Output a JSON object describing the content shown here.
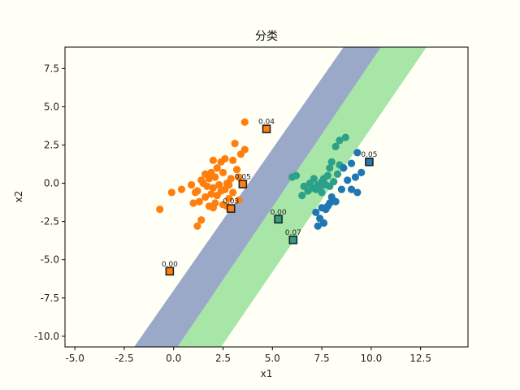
{
  "chart_data": {
    "type": "scatter",
    "title": "分类",
    "xlabel": "x1",
    "ylabel": "x2",
    "xlim": [
      -5.5,
      14.9
    ],
    "ylim": [
      -10.7,
      8.9
    ],
    "xticks": [
      "-5.0",
      "-2.5",
      "0.0",
      "2.5",
      "5.0",
      "7.5",
      "10.0",
      "12.5"
    ],
    "xtick_values": [
      -5,
      -2.5,
      0,
      2.5,
      5,
      7.5,
      10,
      12.5
    ],
    "yticks": [
      "7.5",
      "5.0",
      "2.5",
      "0.0",
      "-2.5",
      "-5.0",
      "-7.5",
      "-10.0"
    ],
    "ytick_values": [
      7.5,
      5,
      2.5,
      0,
      -2.5,
      -5,
      -7.5,
      -10
    ],
    "grid": false,
    "colors": {
      "orange": "#ff7f0e",
      "teal": "#2ca089",
      "blue": "#1f77b4",
      "band_left": "#9aa9c8",
      "band_right": "#a8e6a8",
      "background": "#fffff6"
    },
    "bands": [
      {
        "name": "",
        "color": "#9aa9c8",
        "polygon": [
          [
            -2.0,
            -10.7
          ],
          [
            0.2,
            -10.7
          ],
          [
            10.5,
            8.9
          ],
          [
            8.6,
            8.9
          ]
        ]
      },
      {
        "name": "",
        "color": "#a8e6a8",
        "polygon": [
          [
            0.2,
            -10.7
          ],
          [
            2.4,
            -10.7
          ],
          [
            12.8,
            8.9
          ],
          [
            10.5,
            8.9
          ]
        ]
      }
    ],
    "series": [
      {
        "color": "#ff7f0e",
        "x": [
          3.6,
          3.1,
          3.6,
          3.4,
          2.6,
          2.4,
          3.0,
          2.0,
          3.2,
          2.2,
          1.9,
          1.6,
          2.5,
          2.1,
          1.4,
          3.3,
          2.9,
          2.7,
          1.8,
          1.5,
          2.8,
          2.3,
          0.9,
          1.7,
          2.0,
          1.2,
          2.6,
          3.0,
          2.4,
          1.1,
          0.4,
          1.9,
          2.2,
          1.6,
          2.8,
          1.3,
          2.5,
          3.3,
          2.1,
          1.8,
          -0.1,
          2.0,
          -0.7,
          1.0,
          1.4,
          2.7,
          1.2
        ],
        "y": [
          4.0,
          2.6,
          2.2,
          1.9,
          1.6,
          1.4,
          1.5,
          1.5,
          0.9,
          1.0,
          0.7,
          0.6,
          0.7,
          0.4,
          0.2,
          0.4,
          0.3,
          0.0,
          0.3,
          0.0,
          -0.1,
          -0.1,
          -0.1,
          -0.2,
          -0.3,
          -0.5,
          -0.4,
          -0.6,
          -0.5,
          -0.6,
          -0.4,
          -0.7,
          -0.8,
          -0.9,
          -1.0,
          -1.2,
          -1.4,
          -1.1,
          -1.3,
          -1.5,
          -0.6,
          -1.6,
          -1.7,
          -1.3,
          -2.4,
          -1.5,
          -2.8
        ]
      },
      {
        "color": "#2ca089",
        "x": [
          8.7,
          8.4,
          8.2,
          8.6,
          8.0,
          7.9,
          8.3,
          7.8,
          7.6,
          8.1,
          7.5,
          7.3,
          7.7,
          7.4,
          7.0,
          7.2,
          6.8,
          6.6,
          6.5,
          7.9,
          8.4,
          7.1,
          6.9,
          6.2,
          7.5,
          6.0
        ],
        "y": [
          3.0,
          2.8,
          2.4,
          1.0,
          1.4,
          1.0,
          0.6,
          0.5,
          0.3,
          0.1,
          0.1,
          -0.1,
          -0.1,
          -0.3,
          -0.3,
          -0.4,
          -0.5,
          -0.2,
          -0.8,
          -0.2,
          1.2,
          0.3,
          0.0,
          0.5,
          -0.6,
          0.4
        ]
      },
      {
        "color": "#1f77b4",
        "x": [
          9.3,
          9.0,
          8.6,
          9.5,
          9.2,
          8.8,
          9.0,
          8.5,
          9.3,
          8.0,
          8.2,
          7.9,
          7.8,
          7.7,
          7.5,
          7.2,
          7.4,
          7.6,
          7.3
        ],
        "y": [
          2.0,
          1.3,
          1.0,
          0.7,
          0.4,
          0.2,
          -0.4,
          -0.4,
          -0.6,
          -0.9,
          -1.2,
          -1.3,
          -1.5,
          -1.7,
          -1.6,
          -1.9,
          -2.3,
          -2.6,
          -2.8
        ]
      }
    ],
    "highlighted": [
      {
        "x": 4.7,
        "y": 3.55,
        "color": "#ff7f0e",
        "label": "0.04"
      },
      {
        "x": 3.5,
        "y": -0.05,
        "color": "#ff7f0e",
        "label": "0.05"
      },
      {
        "x": 2.9,
        "y": -1.65,
        "color": "#ff7f0e",
        "label": "0.03"
      },
      {
        "x": -0.2,
        "y": -5.75,
        "color": "#ff7f0e",
        "label": "0.00"
      },
      {
        "x": 5.3,
        "y": -2.35,
        "color": "#2ca089",
        "label": "0.00"
      },
      {
        "x": 6.05,
        "y": -3.7,
        "color": "#2ca089",
        "label": "0.07"
      },
      {
        "x": 9.9,
        "y": 1.4,
        "color": "#1f77b4",
        "label": "0.05"
      }
    ]
  }
}
